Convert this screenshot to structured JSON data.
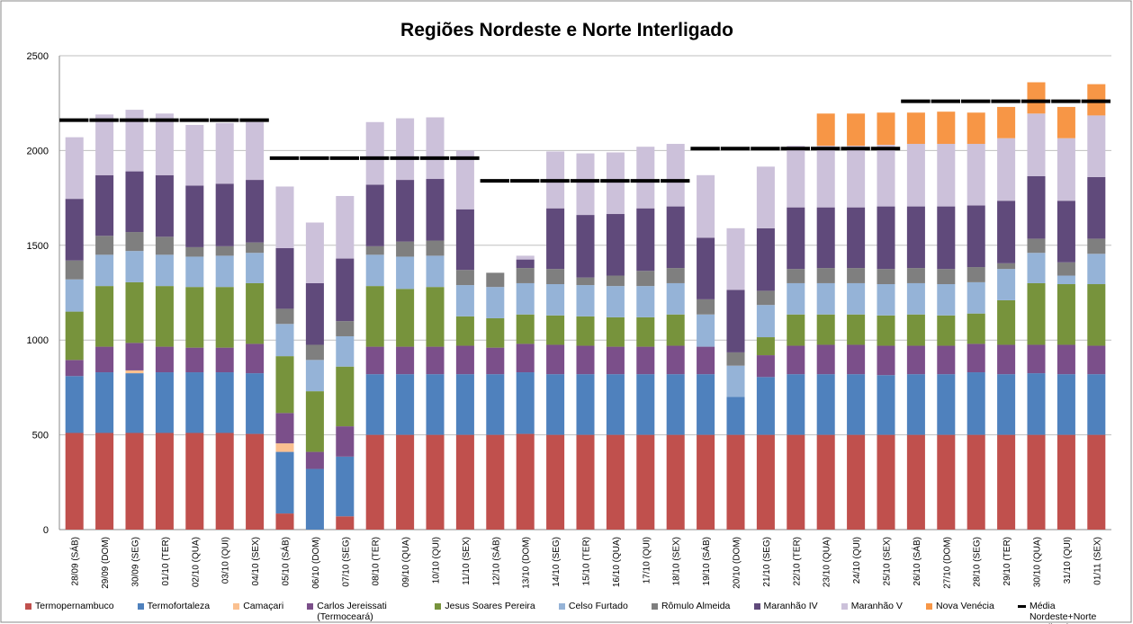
{
  "chart_data": {
    "type": "stacked-bar",
    "title": "Regiões Nordeste e Norte Interligado",
    "categories": [
      "28/09 (SÁB)",
      "29/09 (DOM)",
      "30/09 (SEG)",
      "01/10 (TER)",
      "02/10 (QUA)",
      "03/10 (QUI)",
      "04/10 (SEX)",
      "05/10 (SÁB)",
      "06/10 (DOM)",
      "07/10 (SEG)",
      "08/10 (TER)",
      "09/10 (QUA)",
      "10/10 (QUI)",
      "11/10 (SEX)",
      "12/10 (SÁB)",
      "13/10 (DOM)",
      "14/10 (SEG)",
      "15/10 (TER)",
      "16/10 (QUA)",
      "17/10 (QUI)",
      "18/10 (SEX)",
      "19/10 (SÁB)",
      "20/10 (DOM)",
      "21/10 (SEG)",
      "22/10 (TER)",
      "23/10 (QUA)",
      "24/10 (QUI)",
      "25/10 (SEX)",
      "26/10 (SÁB)",
      "27/10 (DOM)",
      "28/10 (SEG)",
      "29/10 (TER)",
      "30/10 (QUA)",
      "31/10 (QUI)",
      "01/11 (SEX)"
    ],
    "series": [
      {
        "name": "Termopernambuco",
        "color": "#c0504d",
        "values": [
          510,
          510,
          510,
          510,
          510,
          510,
          505,
          85,
          0,
          70,
          500,
          500,
          500,
          500,
          500,
          505,
          500,
          500,
          500,
          500,
          500,
          500,
          500,
          500,
          500,
          500,
          500,
          500,
          500,
          500,
          500,
          500,
          500,
          500,
          500
        ]
      },
      {
        "name": "Termofortaleza",
        "color": "#4f81bd",
        "values": [
          300,
          320,
          315,
          320,
          320,
          320,
          320,
          325,
          320,
          315,
          320,
          320,
          320,
          320,
          320,
          325,
          320,
          320,
          320,
          320,
          320,
          320,
          200,
          305,
          320,
          320,
          320,
          315,
          320,
          320,
          330,
          320,
          325,
          320,
          320
        ]
      },
      {
        "name": "Camaçari",
        "color": "#fac090",
        "values": [
          0,
          0,
          15,
          0,
          0,
          0,
          0,
          45,
          0,
          0,
          0,
          0,
          0,
          0,
          0,
          0,
          0,
          0,
          0,
          0,
          0,
          0,
          0,
          0,
          0,
          0,
          0,
          0,
          0,
          0,
          0,
          0,
          0,
          0,
          0
        ]
      },
      {
        "name": "Carlos Jereissati (Termoceará)",
        "color": "#7b4f8a",
        "values": [
          85,
          135,
          145,
          135,
          130,
          130,
          155,
          160,
          90,
          160,
          145,
          145,
          145,
          150,
          140,
          150,
          155,
          150,
          145,
          145,
          150,
          145,
          0,
          115,
          150,
          155,
          155,
          155,
          150,
          150,
          150,
          155,
          150,
          155,
          150
        ]
      },
      {
        "name": "Jesus Soares Pereira",
        "color": "#77933c",
        "values": [
          255,
          320,
          320,
          320,
          320,
          320,
          320,
          300,
          320,
          315,
          320,
          305,
          315,
          155,
          155,
          155,
          155,
          155,
          155,
          155,
          165,
          0,
          0,
          95,
          165,
          160,
          160,
          160,
          165,
          160,
          160,
          235,
          325,
          320,
          325
        ]
      },
      {
        "name": "Celso Furtado",
        "color": "#95b3d7",
        "values": [
          170,
          165,
          165,
          165,
          160,
          165,
          160,
          170,
          165,
          160,
          165,
          170,
          165,
          165,
          165,
          165,
          165,
          165,
          165,
          165,
          165,
          170,
          165,
          170,
          165,
          165,
          165,
          165,
          165,
          165,
          165,
          165,
          160,
          45,
          160
        ]
      },
      {
        "name": "Rômulo Almeida",
        "color": "#7f7f7f",
        "values": [
          100,
          100,
          100,
          95,
          50,
          50,
          55,
          80,
          80,
          80,
          45,
          80,
          80,
          80,
          75,
          80,
          80,
          40,
          55,
          80,
          80,
          80,
          70,
          75,
          75,
          80,
          80,
          80,
          80,
          80,
          80,
          30,
          75,
          70,
          80
        ]
      },
      {
        "name": "Maranhão IV",
        "color": "#604a7b",
        "values": [
          325,
          320,
          320,
          325,
          325,
          330,
          330,
          320,
          325,
          330,
          325,
          325,
          325,
          320,
          0,
          45,
          320,
          330,
          325,
          330,
          325,
          325,
          330,
          330,
          325,
          320,
          320,
          330,
          325,
          330,
          325,
          330,
          330,
          325,
          325
        ]
      },
      {
        "name": "Maranhão V",
        "color": "#ccc1da",
        "values": [
          325,
          320,
          325,
          325,
          320,
          320,
          305,
          325,
          320,
          330,
          330,
          325,
          325,
          310,
          0,
          20,
          300,
          325,
          325,
          325,
          330,
          330,
          325,
          325,
          325,
          325,
          325,
          325,
          330,
          330,
          325,
          330,
          330,
          330,
          325
        ]
      },
      {
        "name": "Nova Venécia",
        "color": "#f79646",
        "values": [
          0,
          0,
          0,
          0,
          0,
          0,
          0,
          0,
          0,
          0,
          0,
          0,
          0,
          0,
          0,
          0,
          0,
          0,
          0,
          0,
          0,
          0,
          0,
          0,
          0,
          170,
          170,
          170,
          165,
          170,
          165,
          165,
          165,
          165,
          165
        ]
      },
      {
        "name": "Média Nordeste+Norte Interligado",
        "color": "#000000",
        "kind": "line",
        "values": [
          2160,
          2160,
          2160,
          2160,
          2160,
          2160,
          2160,
          1960,
          1960,
          1960,
          1960,
          1960,
          1960,
          1960,
          1840,
          1840,
          1840,
          1840,
          1840,
          1840,
          1840,
          2010,
          2010,
          2010,
          2010,
          2010,
          2010,
          2010,
          2260,
          2260,
          2260,
          2260,
          2260,
          2260,
          2260
        ]
      }
    ],
    "ylim": [
      0,
      2500
    ],
    "yticks": [
      0,
      500,
      1000,
      1500,
      2000,
      2500
    ],
    "grid": true
  }
}
